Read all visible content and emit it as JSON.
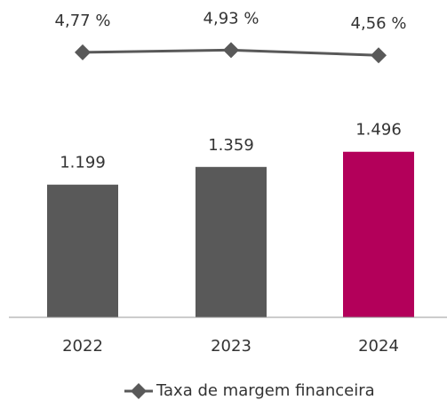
{
  "chart_data": {
    "type": "bar-line",
    "categories": [
      "2022",
      "2023",
      "2024"
    ],
    "series": [
      {
        "type": "bar",
        "values": [
          1199,
          1359,
          1496
        ],
        "value_labels": [
          "1.199",
          "1.359",
          "1.496"
        ],
        "colors": [
          "#595959",
          "#595959",
          "#b3005a"
        ]
      },
      {
        "type": "line",
        "name": "Taxa de margem financeira",
        "color": "#595959",
        "axis": "y2",
        "values": [
          4.77,
          4.93,
          4.56
        ],
        "value_labels": [
          "4,77 %",
          "4,93 %",
          "4,56 %"
        ]
      }
    ],
    "ylim": [
      0,
      2000
    ],
    "y2lim": [
      2.2,
      7.2
    ],
    "legend": "bottom"
  }
}
